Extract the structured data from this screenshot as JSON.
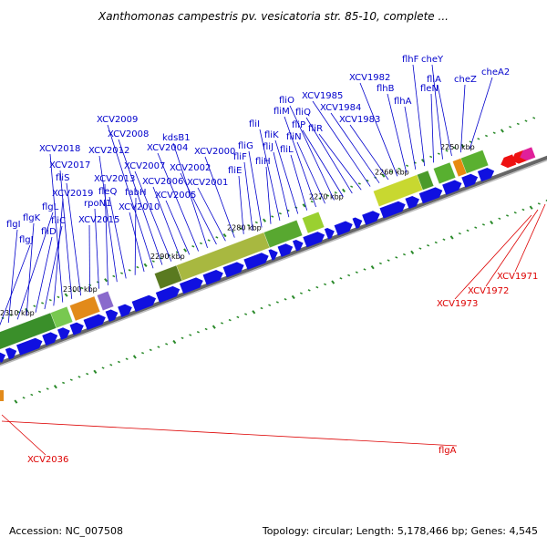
{
  "title": "Xanthomonas campestris pv. vesicatoria str. 85-10, complete ...",
  "footer": {
    "accession": "Accession: NC_007508",
    "summary": "Topology: circular; Length: 5,178,466 bp; Genes: 4,545"
  },
  "colors": {
    "forward_label": "#0000cc",
    "reverse_label": "#dd0000",
    "forward_gene": "#1010e0",
    "reverse_gene": "#ee1111",
    "backbone": "#777777",
    "marker": "#2a8a2a"
  },
  "ticks": [
    {
      "label": "2250 kbp"
    },
    {
      "label": "2260 kbp"
    },
    {
      "label": "2270 kbp"
    },
    {
      "label": "2280 kbp"
    },
    {
      "label": "2290 kbp"
    },
    {
      "label": "2300 kbp"
    },
    {
      "label": "2310 kbp"
    }
  ],
  "forward_labels": [
    "cheA2",
    "cheZ",
    "fliA",
    "cheY",
    "fleN",
    "flhF",
    "flhA",
    "flhB",
    "XCV1982",
    "XCV1983",
    "XCV1984",
    "XCV1985",
    "fliR",
    "fliQ",
    "fliP",
    "fliO",
    "fliN",
    "fliM",
    "fliL",
    "fliK",
    "fliJ",
    "fliI",
    "fliH",
    "fliG",
    "fliF",
    "fliE",
    "XCV2000",
    "XCV2001",
    "XCV2002",
    "kdsB1",
    "XCV2004",
    "XCV2005",
    "XCV2006",
    "XCV2007",
    "XCV2008",
    "XCV2009",
    "XCV2010",
    "fabH",
    "fleQ",
    "XCV2012",
    "XCV2013",
    "rpoN1",
    "XCV2015",
    "fliS",
    "XCV2017",
    "XCV2018",
    "XCV2019",
    "fliC",
    "fliD",
    "flgK",
    "flgL",
    "flgI",
    "flgJ"
  ],
  "reverse_labels": [
    "XCV1971",
    "XCV1972",
    "XCV1973",
    "flgA",
    "XCV2036"
  ]
}
